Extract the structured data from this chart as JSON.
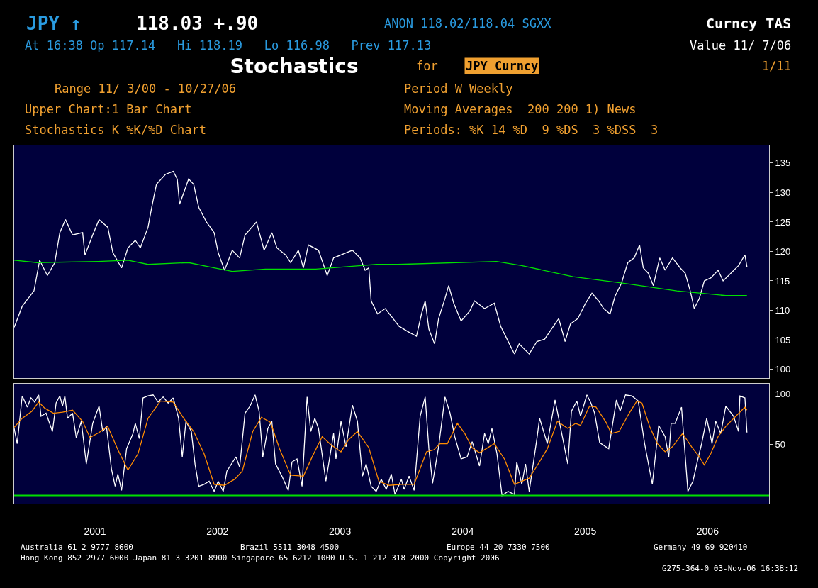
{
  "chart_data": [
    {
      "type": "line",
      "title": "Stochastics",
      "xlim": [
        "2000-11-03",
        "2007-01-01"
      ],
      "ylim": [
        98.5,
        138
      ],
      "yticks": [
        100,
        105,
        110,
        115,
        120,
        125,
        130,
        135
      ],
      "tick_labels": "y",
      "annotations": [
        "JPY ↑",
        "118.03 +.90",
        "ANON 118.02/118.04 SGXX",
        "Curncy TAS",
        "At 16:38 Op 117.14   Hi 118.19   Lo 116.98   Prev 117.13",
        "Value 11/ 7/06",
        "for",
        "JPY Curncy",
        "1/11",
        "Range 11/ 3/00 - 10/27/06",
        "Period W Weekly",
        "Upper Chart:1 Bar Chart",
        "Moving Averages  200 200 1) News",
        "Stochastics K %K/%D Chart",
        "Periods: %K 14 %D  9 %DS  3 %DSS  3",
        "Australia 61 2 9777 8600",
        "Brazil 5511 3048 4500",
        "Europe 44 20 7330 7500",
        "Germany 49 69 920410",
        "Hong Kong 852 2977 6000 Japan 81 3 3201 8900 Singapore 65 6212 1000 U.S. 1 212 318 2000 Copyright 2006",
        "G275-364-0 03-Nov-06 16:38:12"
      ],
      "series": [
        {
          "color": "#ffffff",
          "x": [
            "2000-11-03",
            "2000-11-27",
            "2001-01-01",
            "2001-01-18",
            "2001-02-10",
            "2001-03-04",
            "2001-03-19",
            "2001-04-05",
            "2001-04-26",
            "2001-05-26",
            "2001-06-02",
            "2001-06-25",
            "2001-07-14",
            "2001-08-09",
            "2001-08-24",
            "2001-09-19",
            "2001-10-08",
            "2001-10-30",
            "2001-11-14",
            "2001-12-07",
            "2001-12-18",
            "2002-01-01",
            "2002-01-28",
            "2002-02-20",
            "2002-03-04",
            "2002-03-11",
            "2002-04-07",
            "2002-04-22",
            "2002-05-07",
            "2002-05-30",
            "2002-06-22",
            "2002-07-04",
            "2002-07-23",
            "2002-08-15",
            "2002-09-06",
            "2002-09-22",
            "2002-10-26",
            "2002-11-18",
            "2002-12-11",
            "2002-12-26",
            "2003-01-21",
            "2003-02-05",
            "2003-02-28",
            "2003-03-15",
            "2003-03-30",
            "2003-04-29",
            "2003-05-25",
            "2003-06-13",
            "2003-07-05",
            "2003-08-08",
            "2003-08-31",
            "2003-09-15",
            "2003-09-26",
            "2003-10-03",
            "2003-10-22",
            "2003-11-14",
            "2003-12-02",
            "2003-12-25",
            "2004-01-20",
            "2004-02-15",
            "2004-03-01",
            "2004-03-12",
            "2004-03-23",
            "2004-04-09",
            "2004-04-21",
            "2004-05-10",
            "2004-05-21",
            "2004-06-05",
            "2004-06-27",
            "2004-07-23",
            "2004-08-06",
            "2004-09-05",
            "2004-10-04",
            "2004-10-23",
            "2004-11-18",
            "2004-12-03",
            "2004-12-17",
            "2005-01-16",
            "2005-02-08",
            "2005-03-03",
            "2005-04-03",
            "2005-04-14",
            "2005-05-03",
            "2005-05-19",
            "2005-06-10",
            "2005-07-03",
            "2005-07-22",
            "2005-08-11",
            "2005-08-26",
            "2005-09-14",
            "2005-09-29",
            "2005-10-18",
            "2005-11-06",
            "2005-11-25",
            "2005-12-11",
            "2005-12-22",
            "2006-01-06",
            "2006-01-21",
            "2006-02-09",
            "2006-02-25",
            "2006-03-19",
            "2006-04-11",
            "2006-04-26",
            "2006-05-11",
            "2006-05-23",
            "2006-06-07",
            "2006-06-22",
            "2006-07-11",
            "2006-08-02",
            "2006-08-17",
            "2006-09-09",
            "2006-10-02",
            "2006-10-21",
            "2006-10-27"
          ],
          "values": [
            107.1,
            110.7,
            113.3,
            118.5,
            115.9,
            118.1,
            123.2,
            125.4,
            122.8,
            123.2,
            119.4,
            122.8,
            125.4,
            124.1,
            119.8,
            117.2,
            120.6,
            121.9,
            120.6,
            124.1,
            127.5,
            131.4,
            133.1,
            133.6,
            132.3,
            128.0,
            132.3,
            131.4,
            127.5,
            125.0,
            123.2,
            119.8,
            116.8,
            120.2,
            118.9,
            122.8,
            125.0,
            120.2,
            123.2,
            120.6,
            119.4,
            118.1,
            120.2,
            117.2,
            121.1,
            120.2,
            115.9,
            118.9,
            119.4,
            120.2,
            118.9,
            116.8,
            117.2,
            111.6,
            109.4,
            110.3,
            109.0,
            107.3,
            106.4,
            105.6,
            109.4,
            111.6,
            106.8,
            104.3,
            108.6,
            112.0,
            114.2,
            111.2,
            108.2,
            109.9,
            111.6,
            110.3,
            111.2,
            107.3,
            104.3,
            102.6,
            104.3,
            102.6,
            104.7,
            105.1,
            107.7,
            108.6,
            104.7,
            107.7,
            108.6,
            111.2,
            112.9,
            111.6,
            110.3,
            109.4,
            112.4,
            114.6,
            118.1,
            118.9,
            121.1,
            117.2,
            116.3,
            114.2,
            118.9,
            116.8,
            118.9,
            117.2,
            116.3,
            113.3,
            110.3,
            112.0,
            115.0,
            115.5,
            116.8,
            115.0,
            116.3,
            117.6,
            119.4,
            117.4
          ]
        },
        {
          "color": "#00e000",
          "x": [
            "2000-11-03",
            "2001-01-11",
            "2001-07-11",
            "2001-10-08",
            "2001-12-07",
            "2002-04-07",
            "2002-06-22",
            "2002-08-15",
            "2002-11-22",
            "2003-04-21",
            "2003-09-04",
            "2003-10-19",
            "2003-12-22",
            "2004-10-11",
            "2004-12-24",
            "2005-05-27",
            "2005-10-25",
            "2006-04-01",
            "2006-08-25",
            "2006-10-27"
          ],
          "values": [
            118.5,
            118.1,
            118.3,
            118.5,
            117.8,
            118.1,
            117.2,
            116.6,
            117.0,
            117.0,
            117.6,
            117.8,
            117.8,
            118.3,
            117.6,
            115.7,
            114.6,
            113.3,
            112.5,
            112.5
          ]
        }
      ]
    },
    {
      "type": "line",
      "xlim": [
        "2000-11-03",
        "2007-01-01"
      ],
      "ylim": [
        -8,
        110
      ],
      "yticks": [
        50,
        100
      ],
      "xticks": [
        {
          "value": "2001-07-02",
          "label": "2001"
        },
        {
          "value": "2002-07-02",
          "label": "2002"
        },
        {
          "value": "2003-07-02",
          "label": "2003"
        },
        {
          "value": "2004-07-02",
          "label": "2004"
        },
        {
          "value": "2005-07-02",
          "label": "2005"
        },
        {
          "value": "2006-07-02",
          "label": "2006"
        }
      ],
      "ref_lines": [
        {
          "axis": "y",
          "value": 0,
          "color": "#00e000"
        }
      ],
      "series": [
        {
          "color": "#ffffff",
          "x": [
            "2000-11-03",
            "2000-11-12",
            "2000-11-27",
            "2000-12-12",
            "2000-12-23",
            "2001-01-03",
            "2001-01-15",
            "2001-01-22",
            "2001-02-06",
            "2001-02-25",
            "2001-03-08",
            "2001-03-19",
            "2001-03-27",
            "2001-04-03",
            "2001-04-11",
            "2001-04-26",
            "2001-05-07",
            "2001-05-22",
            "2001-06-06",
            "2001-06-25",
            "2001-07-14",
            "2001-07-25",
            "2001-08-05",
            "2001-08-20",
            "2001-08-31",
            "2001-09-08",
            "2001-09-19",
            "2001-10-04",
            "2001-10-23",
            "2001-10-30",
            "2001-11-11",
            "2001-11-22",
            "2001-12-07",
            "2001-12-22",
            "2002-01-06",
            "2002-01-21",
            "2002-02-05",
            "2002-02-20",
            "2002-03-08",
            "2002-03-19",
            "2002-03-30",
            "2002-04-15",
            "2002-04-26",
            "2002-05-07",
            "2002-05-23",
            "2002-06-07",
            "2002-06-22",
            "2002-07-04",
            "2002-07-19",
            "2002-07-30",
            "2002-08-26",
            "2002-09-06",
            "2002-09-22",
            "2002-10-07",
            "2002-10-22",
            "2002-11-03",
            "2002-11-14",
            "2002-11-29",
            "2002-12-11",
            "2002-12-22",
            "2003-01-10",
            "2003-01-29",
            "2003-02-09",
            "2003-02-24",
            "2003-03-11",
            "2003-03-26",
            "2003-04-06",
            "2003-04-18",
            "2003-04-29",
            "2003-05-21",
            "2003-06-13",
            "2003-06-20",
            "2003-07-05",
            "2003-07-20",
            "2003-08-08",
            "2003-08-23",
            "2003-09-07",
            "2003-09-18",
            "2003-10-03",
            "2003-10-18",
            "2003-11-02",
            "2003-11-17",
            "2003-12-02",
            "2003-12-13",
            "2004-01-01",
            "2004-01-09",
            "2004-01-24",
            "2004-02-08",
            "2004-02-26",
            "2004-03-12",
            "2004-03-23",
            "2004-04-03",
            "2004-04-21",
            "2004-05-10",
            "2004-05-25",
            "2004-06-08",
            "2004-06-27",
            "2004-07-15",
            "2004-07-30",
            "2004-08-21",
            "2004-09-05",
            "2004-09-16",
            "2004-09-27",
            "2004-10-12",
            "2004-10-27",
            "2004-11-14",
            "2004-12-03",
            "2004-12-10",
            "2004-12-25",
            "2005-01-05",
            "2005-01-16",
            "2005-02-08",
            "2005-02-16",
            "2005-03-11",
            "2005-04-03",
            "2005-04-26",
            "2005-05-11",
            "2005-05-22",
            "2005-06-07",
            "2005-06-18",
            "2005-07-07",
            "2005-07-19",
            "2005-07-30",
            "2005-08-14",
            "2005-09-10",
            "2005-10-03",
            "2005-10-14",
            "2005-10-30",
            "2005-11-18",
            "2005-12-07",
            "2005-12-26",
            "2006-01-18",
            "2006-02-06",
            "2006-02-25",
            "2006-03-08",
            "2006-03-15",
            "2006-03-27",
            "2006-04-15",
            "2006-05-04",
            "2006-05-19",
            "2006-06-03",
            "2006-06-14",
            "2006-06-29",
            "2006-07-15",
            "2006-07-26",
            "2006-08-10",
            "2006-08-25",
            "2006-09-17",
            "2006-10-02",
            "2006-10-06",
            "2006-10-21",
            "2006-10-27"
          ],
          "values": [
            66,
            51,
            98,
            87,
            96,
            92,
            99,
            78,
            81,
            63,
            91,
            98,
            88,
            98,
            76,
            81,
            57,
            73,
            31,
            71,
            88,
            63,
            68,
            26,
            9,
            21,
            5,
            46,
            61,
            71,
            56,
            96,
            98,
            99,
            92,
            97,
            91,
            96,
            76,
            38,
            73,
            63,
            31,
            9,
            11,
            14,
            4,
            14,
            4,
            24,
            38,
            28,
            81,
            88,
            99,
            83,
            38,
            66,
            73,
            31,
            19,
            5,
            33,
            36,
            9,
            97,
            63,
            76,
            66,
            14,
            61,
            36,
            73,
            48,
            89,
            73,
            19,
            31,
            9,
            4,
            16,
            6,
            21,
            1,
            16,
            6,
            19,
            5,
            78,
            97,
            46,
            12,
            48,
            97,
            81,
            58,
            36,
            38,
            53,
            29,
            61,
            51,
            66,
            41,
            0,
            4,
            1,
            33,
            11,
            31,
            4,
            56,
            76,
            51,
            94,
            56,
            31,
            83,
            93,
            78,
            99,
            91,
            81,
            52,
            46,
            94,
            83,
            99,
            98,
            93,
            51,
            11,
            69,
            58,
            38,
            71,
            71,
            87,
            4,
            14,
            36,
            51,
            76,
            51,
            73,
            61,
            88,
            78,
            63,
            98,
            96,
            62
          ]
        },
        {
          "color": "#ff8c00",
          "x": [
            "2000-11-03",
            "2000-11-27",
            "2000-12-26",
            "2001-01-15",
            "2001-02-02",
            "2001-02-28",
            "2001-03-27",
            "2001-04-26",
            "2001-05-26",
            "2001-06-17",
            "2001-07-14",
            "2001-08-09",
            "2001-09-08",
            "2001-10-08",
            "2001-11-07",
            "2001-12-07",
            "2002-01-13",
            "2002-02-20",
            "2002-03-23",
            "2002-04-22",
            "2002-05-23",
            "2002-06-22",
            "2002-07-23",
            "2002-08-22",
            "2002-09-14",
            "2002-10-15",
            "2002-11-10",
            "2002-12-07",
            "2003-01-03",
            "2003-02-05",
            "2003-03-15",
            "2003-04-10",
            "2003-05-10",
            "2003-06-05",
            "2003-07-05",
            "2003-07-28",
            "2003-08-23",
            "2003-09-26",
            "2003-10-26",
            "2003-11-25",
            "2004-01-01",
            "2004-02-08",
            "2004-03-16",
            "2004-04-07",
            "2004-04-25",
            "2004-05-17",
            "2004-06-16",
            "2004-07-08",
            "2004-07-30",
            "2004-08-21",
            "2004-10-04",
            "2004-11-03",
            "2004-12-03",
            "2005-01-16",
            "2005-02-08",
            "2005-03-11",
            "2005-04-10",
            "2005-05-11",
            "2005-06-03",
            "2005-06-18",
            "2005-07-15",
            "2005-08-03",
            "2005-09-02",
            "2005-09-18",
            "2005-10-11",
            "2005-11-10",
            "2005-12-03",
            "2005-12-18",
            "2006-01-10",
            "2006-02-02",
            "2006-02-25",
            "2006-03-19",
            "2006-04-18",
            "2006-05-15",
            "2006-06-07",
            "2006-06-22",
            "2006-07-11",
            "2006-08-02",
            "2006-08-25",
            "2006-09-24",
            "2006-10-21",
            "2006-10-27"
          ],
          "values": [
            67,
            76,
            83,
            92,
            86,
            81,
            82,
            84,
            73,
            57,
            62,
            68,
            45,
            25,
            41,
            76,
            93,
            92,
            76,
            63,
            41,
            11,
            10,
            16,
            24,
            63,
            77,
            72,
            46,
            20,
            19,
            38,
            58,
            50,
            43,
            55,
            63,
            47,
            14,
            10,
            11,
            11,
            43,
            45,
            51,
            51,
            71,
            61,
            47,
            42,
            51,
            36,
            11,
            17,
            29,
            46,
            73,
            66,
            71,
            69,
            88,
            87,
            72,
            61,
            63,
            81,
            93,
            91,
            68,
            51,
            43,
            48,
            61,
            48,
            38,
            30,
            41,
            58,
            68,
            78,
            87,
            84
          ]
        }
      ]
    }
  ]
}
